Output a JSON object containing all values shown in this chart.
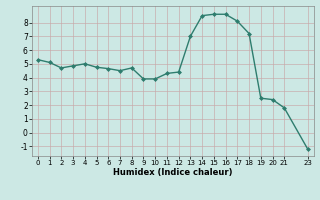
{
  "x": [
    0,
    1,
    2,
    3,
    4,
    5,
    6,
    7,
    8,
    9,
    10,
    11,
    12,
    13,
    14,
    15,
    16,
    17,
    18,
    19,
    20,
    21,
    23
  ],
  "y": [
    5.3,
    5.1,
    4.7,
    4.85,
    5.0,
    4.75,
    4.65,
    4.5,
    4.7,
    3.9,
    3.9,
    4.3,
    4.4,
    7.0,
    8.5,
    8.6,
    8.6,
    8.1,
    7.2,
    2.5,
    2.4,
    1.8,
    -1.2
  ],
  "line_color": "#2e7d6e",
  "marker_color": "#2e7d6e",
  "bg_color": "#cce8e4",
  "grid_color_major": "#b0c8c0",
  "grid_color_minor": "#d4e8e4",
  "xlabel": "Humidex (Indice chaleur)",
  "xlim": [
    -0.5,
    23.5
  ],
  "ylim": [
    -1.7,
    9.2
  ],
  "xticks": [
    0,
    1,
    2,
    3,
    4,
    5,
    6,
    7,
    8,
    9,
    10,
    11,
    12,
    13,
    14,
    15,
    16,
    17,
    18,
    19,
    20,
    21,
    23
  ],
  "yticks": [
    -1,
    0,
    1,
    2,
    3,
    4,
    5,
    6,
    7,
    8
  ]
}
